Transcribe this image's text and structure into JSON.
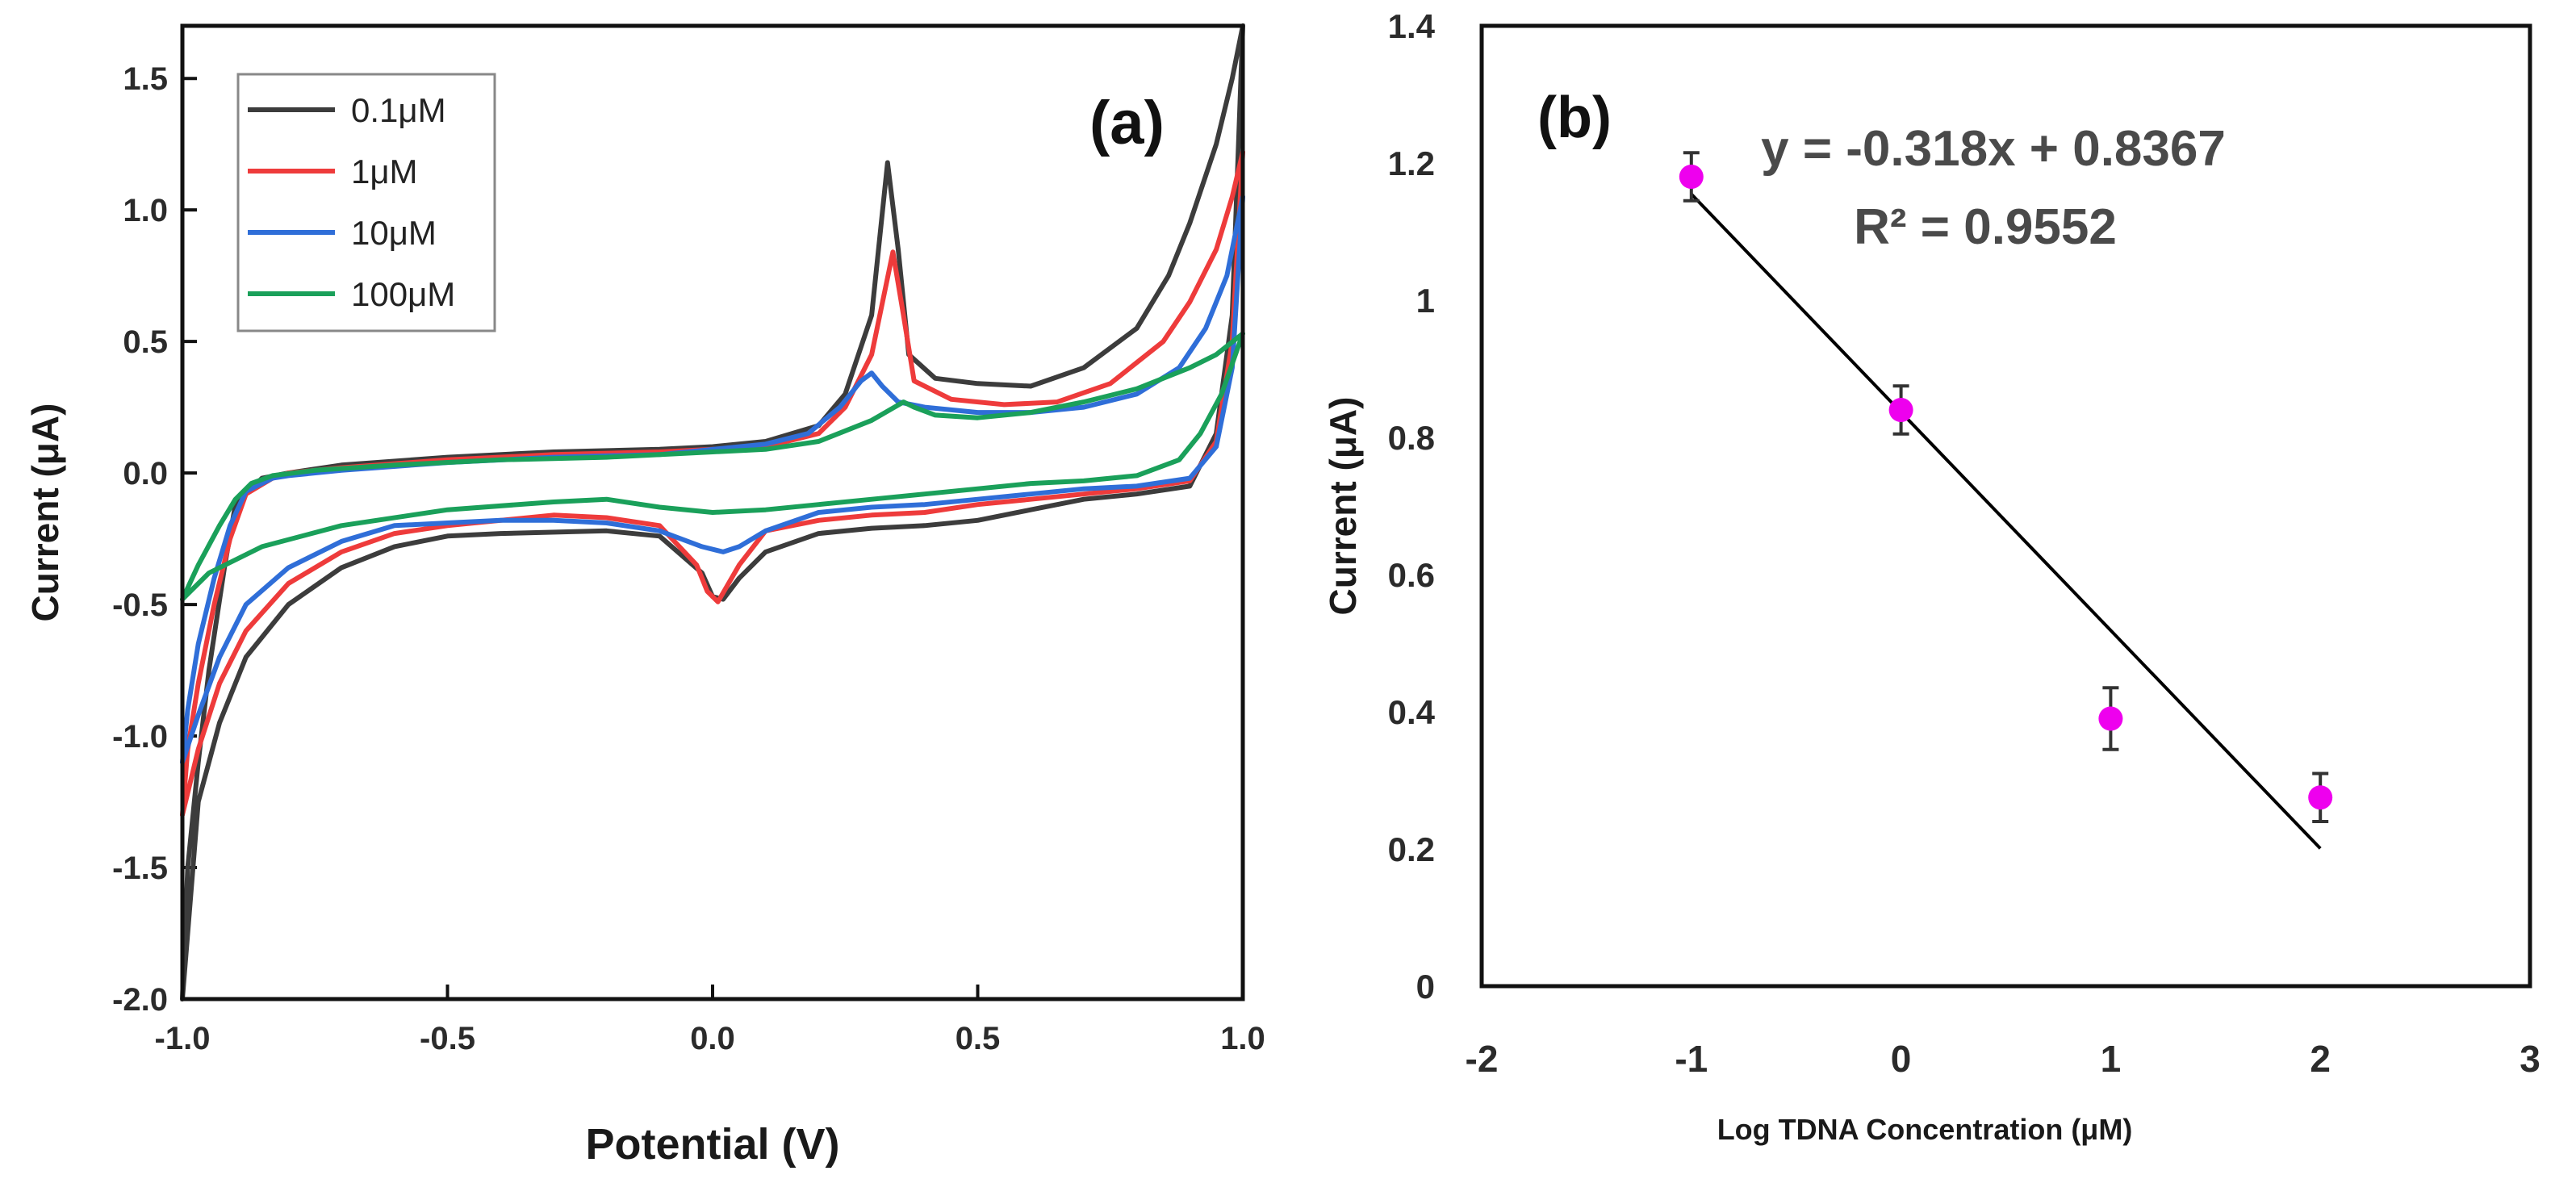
{
  "chart_data": [
    {
      "panel": "(a)",
      "type": "line",
      "xlabel": "Potential (V)",
      "ylabel": "Current (μA)",
      "xlim": [
        -1.0,
        1.0
      ],
      "ylim": [
        -2.0,
        1.7
      ],
      "xticks": [
        "-1.0",
        "-0.5",
        "0.0",
        "0.5",
        "1.0"
      ],
      "yticks": [
        "-2.0",
        "-1.5",
        "-1.0",
        "-0.5",
        "0.0",
        "0.5",
        "1.0",
        "1.5"
      ],
      "legend_position": "top-left",
      "series": [
        {
          "name": "0.1μM",
          "color": "#3c3c3c",
          "upper": [
            [
              -1.0,
              -2.0
            ],
            [
              -0.99,
              -1.5
            ],
            [
              -0.97,
              -1.1
            ],
            [
              -0.95,
              -0.75
            ],
            [
              -0.92,
              -0.35
            ],
            [
              -0.9,
              -0.12
            ],
            [
              -0.85,
              -0.02
            ],
            [
              -0.8,
              0.0
            ],
            [
              -0.7,
              0.03
            ],
            [
              -0.5,
              0.06
            ],
            [
              -0.3,
              0.08
            ],
            [
              -0.1,
              0.09
            ],
            [
              0.0,
              0.1
            ],
            [
              0.1,
              0.12
            ],
            [
              0.2,
              0.18
            ],
            [
              0.25,
              0.3
            ],
            [
              0.3,
              0.6
            ],
            [
              0.33,
              1.18
            ],
            [
              0.35,
              0.85
            ],
            [
              0.37,
              0.45
            ],
            [
              0.42,
              0.36
            ],
            [
              0.5,
              0.34
            ],
            [
              0.6,
              0.33
            ],
            [
              0.7,
              0.4
            ],
            [
              0.8,
              0.55
            ],
            [
              0.86,
              0.75
            ],
            [
              0.9,
              0.95
            ],
            [
              0.95,
              1.25
            ],
            [
              0.98,
              1.5
            ],
            [
              1.0,
              1.7
            ]
          ],
          "lower": [
            [
              1.0,
              1.7
            ],
            [
              0.98,
              0.6
            ],
            [
              0.95,
              0.15
            ],
            [
              0.9,
              -0.05
            ],
            [
              0.8,
              -0.08
            ],
            [
              0.7,
              -0.1
            ],
            [
              0.6,
              -0.14
            ],
            [
              0.5,
              -0.18
            ],
            [
              0.4,
              -0.2
            ],
            [
              0.3,
              -0.21
            ],
            [
              0.2,
              -0.23
            ],
            [
              0.1,
              -0.3
            ],
            [
              0.05,
              -0.4
            ],
            [
              0.02,
              -0.48
            ],
            [
              0.0,
              -0.47
            ],
            [
              -0.02,
              -0.38
            ],
            [
              -0.1,
              -0.24
            ],
            [
              -0.2,
              -0.22
            ],
            [
              -0.4,
              -0.23
            ],
            [
              -0.5,
              -0.24
            ],
            [
              -0.6,
              -0.28
            ],
            [
              -0.7,
              -0.36
            ],
            [
              -0.8,
              -0.5
            ],
            [
              -0.88,
              -0.7
            ],
            [
              -0.93,
              -0.95
            ],
            [
              -0.97,
              -1.25
            ],
            [
              -1.0,
              -2.0
            ]
          ]
        },
        {
          "name": "1μM",
          "color": "#ee3b3b",
          "upper": [
            [
              -1.0,
              -1.3
            ],
            [
              -0.99,
              -1.05
            ],
            [
              -0.97,
              -0.8
            ],
            [
              -0.94,
              -0.5
            ],
            [
              -0.91,
              -0.25
            ],
            [
              -0.88,
              -0.08
            ],
            [
              -0.83,
              -0.02
            ],
            [
              -0.8,
              0.0
            ],
            [
              -0.7,
              0.02
            ],
            [
              -0.5,
              0.05
            ],
            [
              -0.3,
              0.07
            ],
            [
              -0.1,
              0.08
            ],
            [
              0.0,
              0.09
            ],
            [
              0.1,
              0.1
            ],
            [
              0.2,
              0.15
            ],
            [
              0.25,
              0.25
            ],
            [
              0.3,
              0.45
            ],
            [
              0.34,
              0.84
            ],
            [
              0.36,
              0.6
            ],
            [
              0.38,
              0.35
            ],
            [
              0.45,
              0.28
            ],
            [
              0.55,
              0.26
            ],
            [
              0.65,
              0.27
            ],
            [
              0.75,
              0.34
            ],
            [
              0.85,
              0.5
            ],
            [
              0.9,
              0.65
            ],
            [
              0.95,
              0.85
            ],
            [
              0.98,
              1.05
            ],
            [
              1.0,
              1.22
            ]
          ],
          "lower": [
            [
              1.0,
              1.22
            ],
            [
              0.98,
              0.5
            ],
            [
              0.95,
              0.12
            ],
            [
              0.9,
              -0.03
            ],
            [
              0.8,
              -0.06
            ],
            [
              0.7,
              -0.08
            ],
            [
              0.6,
              -0.1
            ],
            [
              0.5,
              -0.12
            ],
            [
              0.4,
              -0.15
            ],
            [
              0.3,
              -0.16
            ],
            [
              0.2,
              -0.18
            ],
            [
              0.1,
              -0.22
            ],
            [
              0.05,
              -0.35
            ],
            [
              0.01,
              -0.49
            ],
            [
              -0.01,
              -0.45
            ],
            [
              -0.03,
              -0.35
            ],
            [
              -0.1,
              -0.2
            ],
            [
              -0.2,
              -0.17
            ],
            [
              -0.3,
              -0.16
            ],
            [
              -0.5,
              -0.2
            ],
            [
              -0.6,
              -0.23
            ],
            [
              -0.7,
              -0.3
            ],
            [
              -0.8,
              -0.42
            ],
            [
              -0.88,
              -0.6
            ],
            [
              -0.93,
              -0.8
            ],
            [
              -0.97,
              -1.05
            ],
            [
              -1.0,
              -1.3
            ]
          ]
        },
        {
          "name": "10μM",
          "color": "#2f6ed8",
          "upper": [
            [
              -1.0,
              -1.1
            ],
            [
              -0.99,
              -0.9
            ],
            [
              -0.97,
              -0.65
            ],
            [
              -0.94,
              -0.4
            ],
            [
              -0.91,
              -0.2
            ],
            [
              -0.88,
              -0.07
            ],
            [
              -0.83,
              -0.02
            ],
            [
              -0.8,
              -0.01
            ],
            [
              -0.7,
              0.01
            ],
            [
              -0.5,
              0.04
            ],
            [
              -0.3,
              0.06
            ],
            [
              -0.1,
              0.07
            ],
            [
              0.0,
              0.09
            ],
            [
              0.1,
              0.11
            ],
            [
              0.18,
              0.15
            ],
            [
              0.24,
              0.25
            ],
            [
              0.28,
              0.35
            ],
            [
              0.3,
              0.38
            ],
            [
              0.32,
              0.33
            ],
            [
              0.35,
              0.27
            ],
            [
              0.4,
              0.25
            ],
            [
              0.5,
              0.23
            ],
            [
              0.6,
              0.23
            ],
            [
              0.7,
              0.25
            ],
            [
              0.8,
              0.3
            ],
            [
              0.88,
              0.4
            ],
            [
              0.93,
              0.55
            ],
            [
              0.97,
              0.75
            ],
            [
              1.0,
              1.05
            ]
          ],
          "lower": [
            [
              1.0,
              1.05
            ],
            [
              0.98,
              0.4
            ],
            [
              0.95,
              0.1
            ],
            [
              0.9,
              -0.02
            ],
            [
              0.8,
              -0.05
            ],
            [
              0.7,
              -0.06
            ],
            [
              0.6,
              -0.08
            ],
            [
              0.5,
              -0.1
            ],
            [
              0.4,
              -0.12
            ],
            [
              0.3,
              -0.13
            ],
            [
              0.2,
              -0.15
            ],
            [
              0.1,
              -0.22
            ],
            [
              0.05,
              -0.28
            ],
            [
              0.02,
              -0.3
            ],
            [
              -0.02,
              -0.28
            ],
            [
              -0.1,
              -0.22
            ],
            [
              -0.2,
              -0.19
            ],
            [
              -0.3,
              -0.18
            ],
            [
              -0.4,
              -0.18
            ],
            [
              -0.5,
              -0.19
            ],
            [
              -0.6,
              -0.2
            ],
            [
              -0.7,
              -0.26
            ],
            [
              -0.8,
              -0.36
            ],
            [
              -0.88,
              -0.5
            ],
            [
              -0.93,
              -0.7
            ],
            [
              -0.97,
              -0.92
            ],
            [
              -1.0,
              -1.1
            ]
          ]
        },
        {
          "name": "100μM",
          "color": "#1aa05a",
          "upper": [
            [
              -1.0,
              -0.48
            ],
            [
              -0.97,
              -0.35
            ],
            [
              -0.93,
              -0.2
            ],
            [
              -0.9,
              -0.1
            ],
            [
              -0.87,
              -0.04
            ],
            [
              -0.83,
              -0.01
            ],
            [
              -0.75,
              0.01
            ],
            [
              -0.6,
              0.03
            ],
            [
              -0.4,
              0.05
            ],
            [
              -0.2,
              0.06
            ],
            [
              0.0,
              0.08
            ],
            [
              0.1,
              0.09
            ],
            [
              0.2,
              0.12
            ],
            [
              0.3,
              0.2
            ],
            [
              0.36,
              0.27
            ],
            [
              0.38,
              0.25
            ],
            [
              0.42,
              0.22
            ],
            [
              0.5,
              0.21
            ],
            [
              0.6,
              0.23
            ],
            [
              0.7,
              0.27
            ],
            [
              0.8,
              0.32
            ],
            [
              0.9,
              0.4
            ],
            [
              0.95,
              0.45
            ],
            [
              1.0,
              0.53
            ]
          ],
          "lower": [
            [
              1.0,
              0.53
            ],
            [
              0.96,
              0.3
            ],
            [
              0.92,
              0.15
            ],
            [
              0.88,
              0.05
            ],
            [
              0.8,
              -0.01
            ],
            [
              0.7,
              -0.03
            ],
            [
              0.6,
              -0.04
            ],
            [
              0.5,
              -0.06
            ],
            [
              0.4,
              -0.08
            ],
            [
              0.3,
              -0.1
            ],
            [
              0.2,
              -0.12
            ],
            [
              0.1,
              -0.14
            ],
            [
              0.0,
              -0.15
            ],
            [
              -0.1,
              -0.13
            ],
            [
              -0.2,
              -0.1
            ],
            [
              -0.3,
              -0.11
            ],
            [
              -0.5,
              -0.14
            ],
            [
              -0.7,
              -0.2
            ],
            [
              -0.85,
              -0.28
            ],
            [
              -0.95,
              -0.38
            ],
            [
              -1.0,
              -0.48
            ]
          ]
        }
      ]
    },
    {
      "panel": "(b)",
      "type": "scatter",
      "xlabel": "Log TDNA Concentration (μM)",
      "ylabel": "Current (μA)",
      "xlim": [
        -2,
        3
      ],
      "ylim": [
        0,
        1.4
      ],
      "xticks": [
        "-2",
        "-1",
        "0",
        "1",
        "2",
        "3"
      ],
      "yticks": [
        "0",
        "0.2",
        "0.4",
        "0.6",
        "0.8",
        "1",
        "1.2",
        "1.4"
      ],
      "points": [
        {
          "x": -1,
          "y": 1.18,
          "err": 0.035
        },
        {
          "x": 0,
          "y": 0.84,
          "err": 0.035
        },
        {
          "x": 1,
          "y": 0.39,
          "err": 0.045
        },
        {
          "x": 2,
          "y": 0.275,
          "err": 0.035
        }
      ],
      "point_color": "#ee00ee",
      "fit": {
        "slope": -0.318,
        "intercept": 0.8367,
        "x_range": [
          -1,
          2
        ],
        "color": "#000000"
      },
      "equation": "y = -0.318x + 0.8367",
      "r_squared": "R² = 0.9552"
    }
  ]
}
